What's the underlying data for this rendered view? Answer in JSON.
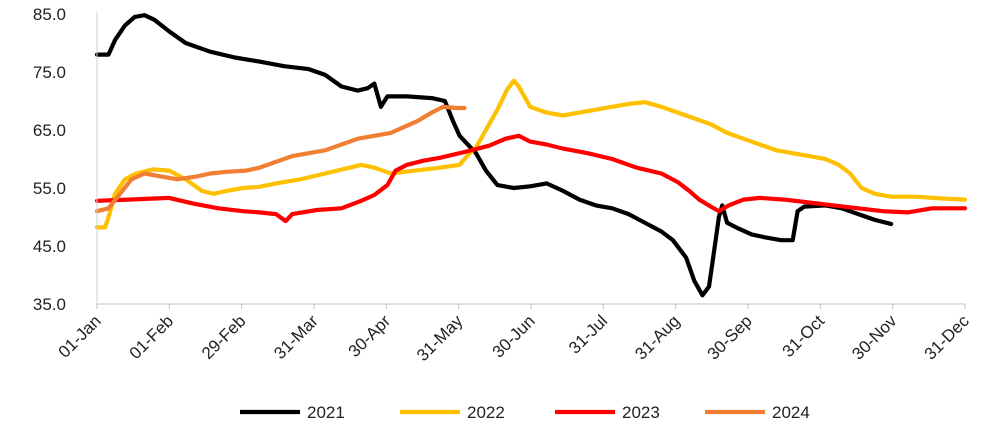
{
  "chart_data": {
    "type": "line",
    "title": "",
    "xlabel": "",
    "ylabel": "",
    "ylim": [
      35,
      85
    ],
    "yticks": [
      "85.0",
      "75.0",
      "65.0",
      "55.0",
      "45.0",
      "35.0"
    ],
    "xticks": [
      "01-Jan",
      "01-Feb",
      "29-Feb",
      "31-Mar",
      "30-Apr",
      "31-May",
      "30-Jun",
      "31-Jul",
      "31-Aug",
      "30-Sep",
      "31-Oct",
      "30-Nov",
      "31-Dec"
    ],
    "x_unit": "day of year",
    "grid": false,
    "legend_position": "bottom",
    "series": [
      {
        "name": "2021",
        "color": "#000000",
        "points": [
          [
            1,
            78
          ],
          [
            8,
            78
          ],
          [
            12,
            80.5
          ],
          [
            18,
            83
          ],
          [
            24,
            84.5
          ],
          [
            30,
            84.8
          ],
          [
            36,
            84
          ],
          [
            45,
            82
          ],
          [
            55,
            80
          ],
          [
            70,
            78.5
          ],
          [
            85,
            77.5
          ],
          [
            100,
            76.8
          ],
          [
            115,
            76
          ],
          [
            130,
            75.5
          ],
          [
            140,
            74.5
          ],
          [
            150,
            72.5
          ],
          [
            160,
            71.8
          ],
          [
            166,
            72.2
          ],
          [
            170,
            73
          ],
          [
            174,
            69
          ],
          [
            178,
            70.8
          ],
          [
            190,
            70.8
          ],
          [
            205,
            70.5
          ],
          [
            213,
            70
          ],
          [
            218,
            66.5
          ],
          [
            222,
            64
          ],
          [
            227,
            62.5
          ],
          [
            232,
            61
          ],
          [
            238,
            58
          ],
          [
            245,
            55.5
          ],
          [
            255,
            55
          ],
          [
            265,
            55.3
          ],
          [
            275,
            55.8
          ],
          [
            285,
            54.5
          ],
          [
            295,
            53
          ],
          [
            305,
            52
          ],
          [
            315,
            51.5
          ],
          [
            325,
            50.5
          ],
          [
            335,
            49
          ],
          [
            345,
            47.5
          ],
          [
            352,
            46
          ],
          [
            360,
            43
          ],
          [
            365,
            39
          ],
          [
            370,
            36.5
          ],
          [
            374,
            38
          ],
          [
            377,
            44
          ],
          [
            380,
            50
          ],
          [
            382,
            52
          ],
          [
            385,
            49
          ],
          [
            392,
            48
          ],
          [
            400,
            47
          ],
          [
            408,
            46.5
          ],
          [
            418,
            46
          ],
          [
            425,
            46
          ],
          [
            428,
            51
          ],
          [
            432,
            51.8
          ],
          [
            445,
            52
          ],
          [
            455,
            51.5
          ],
          [
            465,
            50.5
          ],
          [
            475,
            49.5
          ],
          [
            485,
            48.8
          ]
        ]
      },
      {
        "name": "2022",
        "color": "#FFC000",
        "points": [
          [
            1,
            48.2
          ],
          [
            6,
            48.2
          ],
          [
            8,
            50
          ],
          [
            12,
            54
          ],
          [
            18,
            56.5
          ],
          [
            25,
            57.5
          ],
          [
            35,
            58.2
          ],
          [
            45,
            58
          ],
          [
            55,
            56.5
          ],
          [
            65,
            54.5
          ],
          [
            72,
            54
          ],
          [
            80,
            54.5
          ],
          [
            90,
            55
          ],
          [
            100,
            55.2
          ],
          [
            110,
            55.8
          ],
          [
            125,
            56.5
          ],
          [
            140,
            57.5
          ],
          [
            155,
            58.5
          ],
          [
            162,
            59
          ],
          [
            170,
            58.5
          ],
          [
            180,
            57.5
          ],
          [
            195,
            58
          ],
          [
            210,
            58.5
          ],
          [
            222,
            59
          ],
          [
            228,
            61
          ],
          [
            232,
            62
          ],
          [
            238,
            65
          ],
          [
            245,
            68.5
          ],
          [
            251,
            72
          ],
          [
            255,
            73.5
          ],
          [
            258,
            72.5
          ],
          [
            265,
            69
          ],
          [
            275,
            68
          ],
          [
            285,
            67.5
          ],
          [
            295,
            68
          ],
          [
            305,
            68.5
          ],
          [
            315,
            69
          ],
          [
            325,
            69.5
          ],
          [
            335,
            69.8
          ],
          [
            345,
            69
          ],
          [
            355,
            68
          ],
          [
            365,
            67
          ],
          [
            375,
            66
          ],
          [
            385,
            64.5
          ],
          [
            395,
            63.5
          ],
          [
            405,
            62.5
          ],
          [
            415,
            61.5
          ],
          [
            425,
            61
          ],
          [
            435,
            60.5
          ],
          [
            445,
            60
          ],
          [
            453,
            59
          ],
          [
            460,
            57.5
          ],
          [
            467,
            55
          ],
          [
            475,
            54
          ],
          [
            485,
            53.5
          ],
          [
            500,
            53.5
          ],
          [
            515,
            53.2
          ],
          [
            530,
            53
          ]
        ]
      },
      {
        "name": "2023",
        "color": "#FF0000",
        "points": [
          [
            1,
            52.8
          ],
          [
            20,
            53
          ],
          [
            45,
            53.3
          ],
          [
            60,
            52.3
          ],
          [
            75,
            51.5
          ],
          [
            90,
            51
          ],
          [
            100,
            50.8
          ],
          [
            110,
            50.5
          ],
          [
            116,
            49.3
          ],
          [
            120,
            50.5
          ],
          [
            135,
            51.2
          ],
          [
            150,
            51.5
          ],
          [
            162,
            52.8
          ],
          [
            170,
            53.8
          ],
          [
            178,
            55.5
          ],
          [
            183,
            58
          ],
          [
            190,
            59
          ],
          [
            200,
            59.7
          ],
          [
            210,
            60.2
          ],
          [
            225,
            61.2
          ],
          [
            240,
            62.3
          ],
          [
            250,
            63.5
          ],
          [
            258,
            64
          ],
          [
            265,
            63
          ],
          [
            275,
            62.5
          ],
          [
            285,
            61.8
          ],
          [
            300,
            61
          ],
          [
            315,
            60
          ],
          [
            330,
            58.5
          ],
          [
            345,
            57.5
          ],
          [
            355,
            56
          ],
          [
            362,
            54.5
          ],
          [
            368,
            53
          ],
          [
            375,
            51.8
          ],
          [
            380,
            51
          ],
          [
            386,
            52
          ],
          [
            395,
            53
          ],
          [
            405,
            53.3
          ],
          [
            420,
            53
          ],
          [
            435,
            52.5
          ],
          [
            450,
            52
          ],
          [
            465,
            51.5
          ],
          [
            480,
            51
          ],
          [
            495,
            50.8
          ],
          [
            510,
            51.5
          ],
          [
            520,
            51.5
          ],
          [
            530,
            51.5
          ]
        ]
      },
      {
        "name": "2024",
        "color": "#F07F33",
        "points": [
          [
            1,
            51
          ],
          [
            8,
            51.5
          ],
          [
            15,
            54
          ],
          [
            22,
            56.5
          ],
          [
            30,
            57.5
          ],
          [
            40,
            57
          ],
          [
            50,
            56.5
          ],
          [
            62,
            57
          ],
          [
            70,
            57.5
          ],
          [
            80,
            57.8
          ],
          [
            92,
            58
          ],
          [
            100,
            58.5
          ],
          [
            110,
            59.5
          ],
          [
            120,
            60.5
          ],
          [
            130,
            61
          ],
          [
            140,
            61.5
          ],
          [
            150,
            62.5
          ],
          [
            160,
            63.5
          ],
          [
            170,
            64
          ],
          [
            180,
            64.5
          ],
          [
            188,
            65.5
          ],
          [
            196,
            66.5
          ],
          [
            205,
            68
          ],
          [
            212,
            69
          ],
          [
            220,
            68.8
          ],
          [
            225,
            68.8
          ]
        ]
      }
    ]
  }
}
